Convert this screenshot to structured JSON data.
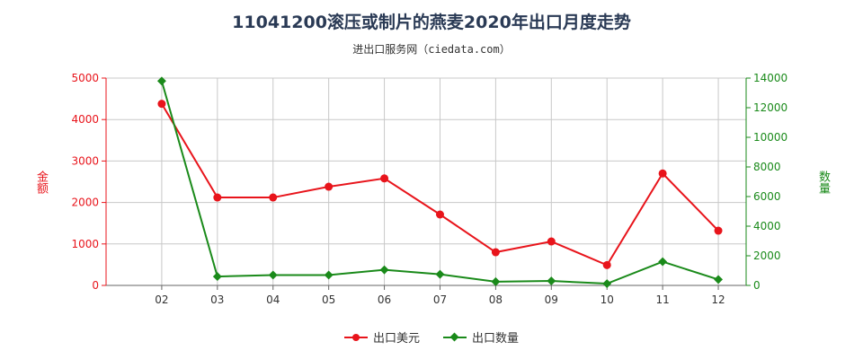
{
  "colors": {
    "usd": "#e8141b",
    "qty": "#1a8a1a",
    "grid": "#c8c8c8",
    "axis": "#666666"
  },
  "chart_data": {
    "type": "line",
    "title": "11041200滚压或制片的燕麦2020年出口月度走势",
    "subtitle": "进出口服务网（ciedata.com）",
    "categories": [
      "02",
      "03",
      "04",
      "05",
      "06",
      "07",
      "08",
      "09",
      "10",
      "11",
      "12"
    ],
    "y_left": {
      "label": "金额",
      "range": [
        0,
        5000
      ],
      "ticks": [
        "0",
        "1000",
        "2000",
        "3000",
        "4000",
        "5000"
      ]
    },
    "y_right": {
      "label": "数量",
      "range": [
        0,
        14000
      ],
      "ticks": [
        "0",
        "2000",
        "4000",
        "6000",
        "8000",
        "10000",
        "12000",
        "14000"
      ]
    },
    "series": [
      {
        "name": "出口美元",
        "axis": "left",
        "values": [
          4380,
          2120,
          2120,
          2380,
          2580,
          1710,
          800,
          1060,
          490,
          2700,
          1320
        ]
      },
      {
        "name": "出口数量",
        "axis": "right",
        "values": [
          13800,
          600,
          700,
          700,
          1050,
          750,
          250,
          300,
          120,
          1600,
          400
        ]
      }
    ],
    "grid": true,
    "legend": "bottom-center"
  }
}
